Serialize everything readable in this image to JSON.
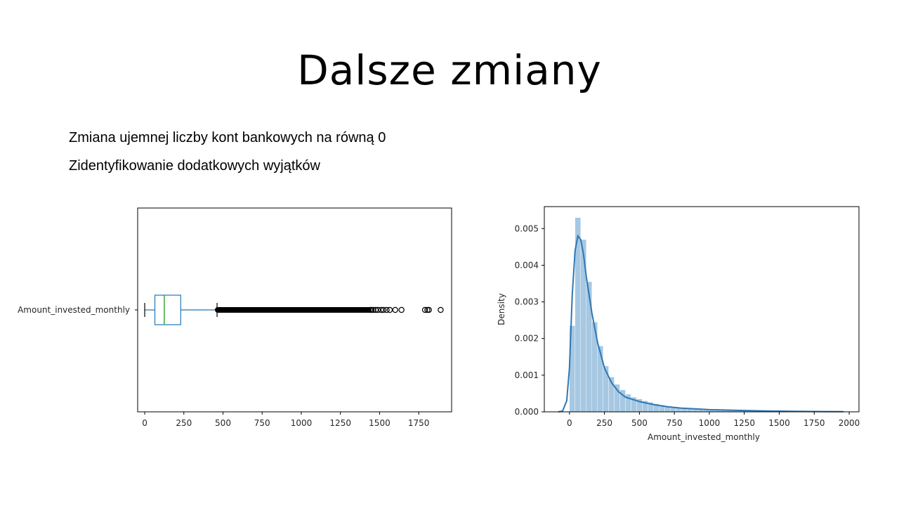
{
  "slide": {
    "title": "Dalsze zmiany",
    "bullets": [
      "Zmiana ujemnej liczby kont bankowych na równą 0",
      "Zidentyfikowanie dodatkowych wyjątków"
    ]
  },
  "chart_data": [
    {
      "type": "boxplot",
      "orientation": "horizontal",
      "category": "Amount_invested_monthly",
      "xlim": [
        -45,
        1960
      ],
      "xticks": [
        0,
        250,
        500,
        750,
        1000,
        1250,
        1500,
        1750
      ],
      "whisker_low": 0,
      "q1": 65,
      "median": 125,
      "q3": 230,
      "whisker_high": 462,
      "outlier_dense_range": [
        462,
        1435
      ],
      "outliers": [
        1440,
        1450,
        1460,
        1475,
        1490,
        1510,
        1525,
        1545,
        1565,
        1600,
        1640,
        1790,
        1805,
        1815,
        1890
      ],
      "colors": {
        "box": "#1f77b4",
        "median": "#2ca02c",
        "whisker": "#1f77b4",
        "outlier": "#000000"
      }
    },
    {
      "type": "histogram+kde",
      "xlabel": "Amount_invested_monthly",
      "ylabel": "Density",
      "xlim": [
        -180,
        2070
      ],
      "ylim": [
        0,
        0.0056
      ],
      "xticks": [
        0,
        250,
        500,
        750,
        1000,
        1250,
        1500,
        1750,
        2000
      ],
      "yticks": [
        0.0,
        0.001,
        0.002,
        0.003,
        0.004,
        0.005
      ],
      "ytick_labels": [
        "0.000",
        "0.001",
        "0.002",
        "0.003",
        "0.004",
        "0.005"
      ],
      "bin_edges": [
        0,
        40,
        80,
        120,
        160,
        200,
        240,
        280,
        320,
        360,
        400,
        440,
        480,
        520,
        560,
        600,
        640,
        680,
        720,
        760,
        800,
        840,
        880,
        920,
        960,
        1000,
        1040,
        1080,
        1120,
        1160,
        1200,
        1240,
        1280,
        1320,
        1360,
        1400,
        1440,
        1480,
        1520,
        1560,
        1600,
        1640,
        1680,
        1720,
        1760,
        1800,
        1840,
        1880,
        1920,
        1960
      ],
      "bin_densities": [
        0.00235,
        0.0053,
        0.0047,
        0.00355,
        0.00245,
        0.0018,
        0.00125,
        0.00095,
        0.00075,
        0.0006,
        0.00048,
        0.0004,
        0.00035,
        0.0003,
        0.00026,
        0.00022,
        0.00019,
        0.00016,
        0.00013,
        0.00011,
        0.0001,
        9e-05,
        8e-05,
        7e-05,
        6e-05,
        5.5e-05,
        5e-05,
        4.5e-05,
        4e-05,
        3.5e-05,
        3e-05,
        2.8e-05,
        2.5e-05,
        2.2e-05,
        2e-05,
        1.8e-05,
        1.6e-05,
        1.4e-05,
        1.2e-05,
        1e-05,
        9e-06,
        8e-06,
        7e-06,
        6e-06,
        5e-06,
        5e-06,
        4e-06,
        4e-06,
        3e-06
      ],
      "kde_x": [
        -80,
        -50,
        -20,
        0,
        20,
        40,
        60,
        80,
        100,
        120,
        140,
        160,
        180,
        200,
        250,
        300,
        350,
        400,
        500,
        600,
        700,
        800,
        900,
        1000,
        1200,
        1400,
        1600,
        1800,
        1960
      ],
      "kde_y": [
        0,
        2e-05,
        0.0003,
        0.0012,
        0.0032,
        0.0044,
        0.0048,
        0.0047,
        0.0043,
        0.0037,
        0.0032,
        0.0027,
        0.0023,
        0.0019,
        0.0012,
        0.0008,
        0.00055,
        0.0004,
        0.00028,
        0.0002,
        0.00014,
        0.0001,
        8e-05,
        6e-05,
        4e-05,
        2.5e-05,
        1.5e-05,
        8e-06,
        4e-06
      ],
      "colors": {
        "bars": "#a6c8e2",
        "kde": "#2f77b4"
      }
    }
  ]
}
